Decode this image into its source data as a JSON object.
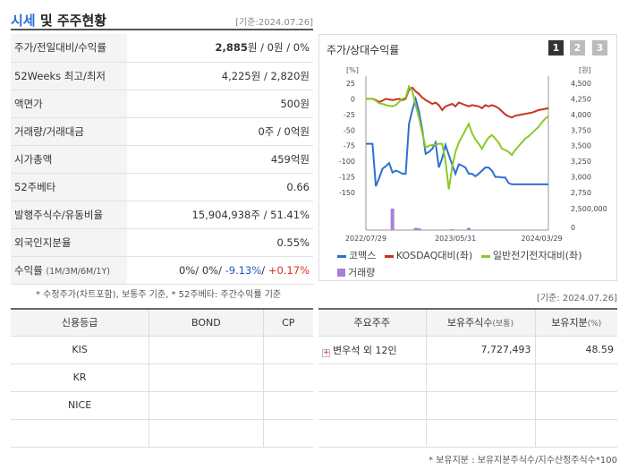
{
  "header": {
    "title_a": "시세",
    "title_b": " 및 주주현황",
    "date": "[기준:2024.07.26]"
  },
  "rows": [
    {
      "key": "주가/전일대비/수익률",
      "v_bold": "2,885",
      "v_rest": "원 / 0원 / 0%"
    },
    {
      "key": "52Weeks 최고/최저",
      "v_rest": "4,225원 / 2,820원"
    },
    {
      "key": "액면가",
      "v_rest": "500원"
    },
    {
      "key": "거래량/거래대금",
      "v_rest": "0주 / 0억원"
    },
    {
      "key": "시가총액",
      "v_rest": "459억원"
    },
    {
      "key": "52주베타",
      "v_rest": "0.66"
    },
    {
      "key": "발행주식수/유동비율",
      "v_rest": "15,904,938주 / 51.41%"
    },
    {
      "key": "외국인지분율",
      "v_rest": "0.55%"
    }
  ],
  "returns": {
    "key": "수익률",
    "key_sub": "(1M/3M/6M/1Y)",
    "v1": "0%/ 0%/ ",
    "v2": "-9.13%",
    "sep": "/ ",
    "v3": "+0.17%"
  },
  "note1": "* 수정주가(차트포함), 보통주 기준, * 52주베타: 주간수익률 기준",
  "date2": "[기준: 2024.07.26]",
  "chart": {
    "title": "주가/상대수익률",
    "pages": [
      "1",
      "2",
      "3"
    ],
    "left_unit": "[%]",
    "right_unit": "[원]",
    "left_ticks": [
      "25",
      "0",
      "-25",
      "-50",
      "-75",
      "-100",
      "-125",
      "-150"
    ],
    "right_ticks": [
      "4,500",
      "4,250",
      "4,000",
      "3,750",
      "3,500",
      "3,250",
      "3,000",
      "2,750"
    ],
    "vol_tick_top": "2,500,000",
    "vol_tick_bottom": "0",
    "x_ticks": [
      "2022/07/29",
      "2023/05/31",
      "2024/03/29"
    ],
    "legend": [
      "코맥스",
      "KOSDAQ대비(좌)",
      "일반전기전자대비(좌)",
      "거래량"
    ],
    "colors": {
      "komax": "#2f6fd0",
      "kosdaq": "#c8321e",
      "sector": "#8ac926",
      "volume": "#a77fd9"
    }
  },
  "chart_data": {
    "type": "line",
    "x": [
      0,
      1,
      2,
      3,
      4,
      5,
      6,
      7,
      8,
      9,
      10,
      11,
      12,
      13,
      14,
      15,
      16,
      17,
      18,
      19,
      20,
      21,
      22,
      23,
      24,
      25,
      26,
      27,
      28,
      29,
      30,
      31,
      32,
      33,
      34,
      35,
      36,
      37,
      38,
      39,
      40,
      41,
      42,
      43,
      44,
      45,
      46,
      47,
      48,
      49,
      50,
      51,
      52,
      53,
      54,
      55
    ],
    "x_ticks": [
      "2022/07/29",
      "2023/05/31",
      "2024/03/29"
    ],
    "series": [
      {
        "name": "코맥스",
        "axis": "left",
        "values": [
          -72,
          -72,
          -72,
          -140,
          -127,
          -112,
          -108,
          -103,
          -118,
          -115,
          -117,
          -120,
          -120,
          -40,
          -18,
          0,
          -20,
          -50,
          -88,
          -85,
          -80,
          -70,
          -110,
          -95,
          -74,
          -90,
          -105,
          -120,
          -105,
          -107,
          -110,
          -120,
          -120,
          -124,
          -120,
          -115,
          -110,
          -110,
          -115,
          -125,
          -125,
          -126,
          -126,
          -135,
          -137,
          -137,
          -137,
          -137,
          -137,
          -137,
          -137,
          -137,
          -137,
          -137,
          -137,
          -137
        ]
      },
      {
        "name": "KOSDAQ대비(좌)",
        "axis": "left",
        "values": [
          0,
          0,
          0,
          -2,
          -5,
          -3,
          0,
          -1,
          -2,
          -1,
          0,
          -2,
          0,
          15,
          18,
          12,
          8,
          2,
          -2,
          -5,
          -8,
          -6,
          -10,
          -18,
          -12,
          -10,
          -8,
          -12,
          -6,
          -8,
          -10,
          -12,
          -10,
          -11,
          -12,
          -15,
          -10,
          -12,
          -10,
          -12,
          -15,
          -20,
          -25,
          -28,
          -30,
          -27,
          -26,
          -25,
          -24,
          -23,
          -22,
          -20,
          -18,
          -17,
          -16,
          -15
        ]
      },
      {
        "name": "일반전기전자대비(좌)",
        "axis": "left",
        "values": [
          0,
          0,
          0,
          -3,
          -7,
          -8,
          -10,
          -11,
          -12,
          -10,
          -5,
          0,
          2,
          20,
          12,
          -10,
          -30,
          -55,
          -78,
          -75,
          -74,
          -73,
          -72,
          -72,
          -100,
          -145,
          -110,
          -85,
          -70,
          -60,
          -50,
          -40,
          -55,
          -65,
          -72,
          -80,
          -70,
          -62,
          -58,
          -64,
          -70,
          -80,
          -82,
          -85,
          -90,
          -82,
          -76,
          -70,
          -64,
          -60,
          -55,
          -50,
          -45,
          -38,
          -32,
          -28
        ]
      }
    ],
    "volume_values": [
      0,
      0,
      0,
      0,
      0,
      0,
      0,
      0,
      2500000,
      0,
      0,
      0,
      0,
      0,
      0,
      250000,
      200000,
      0,
      0,
      0,
      0,
      0,
      0,
      0,
      0,
      0,
      100000,
      0,
      0,
      0,
      0,
      250000,
      0,
      0,
      0,
      0,
      0,
      0,
      0,
      0,
      0,
      0,
      0,
      0,
      0,
      0,
      0,
      0,
      0,
      0,
      0,
      0,
      0,
      0,
      0,
      0
    ],
    "ylim_left": [
      -150,
      25
    ],
    "ylim_right": [
      2750,
      4500
    ],
    "ylim_volume": [
      0,
      2500000
    ],
    "grid": false,
    "legend_position": "bottom"
  },
  "credit": {
    "headers": [
      "신용등급",
      "BOND",
      "CP"
    ],
    "rows": [
      [
        "KIS",
        "",
        ""
      ],
      [
        "KR",
        "",
        ""
      ],
      [
        "NICE",
        "",
        ""
      ],
      [
        "",
        "",
        ""
      ]
    ]
  },
  "holders": {
    "headers": [
      "주요주주",
      "보유주식수",
      "(보통)",
      "보유지분",
      "(%)"
    ],
    "rows": [
      [
        "변우석 외 12인",
        "7,727,493",
        "48.59"
      ],
      [
        "",
        "",
        ""
      ],
      [
        "",
        "",
        ""
      ],
      [
        "",
        "",
        ""
      ]
    ]
  },
  "note2": "* 보유지분 : 보유지분주식수/지수산정주식수*100"
}
